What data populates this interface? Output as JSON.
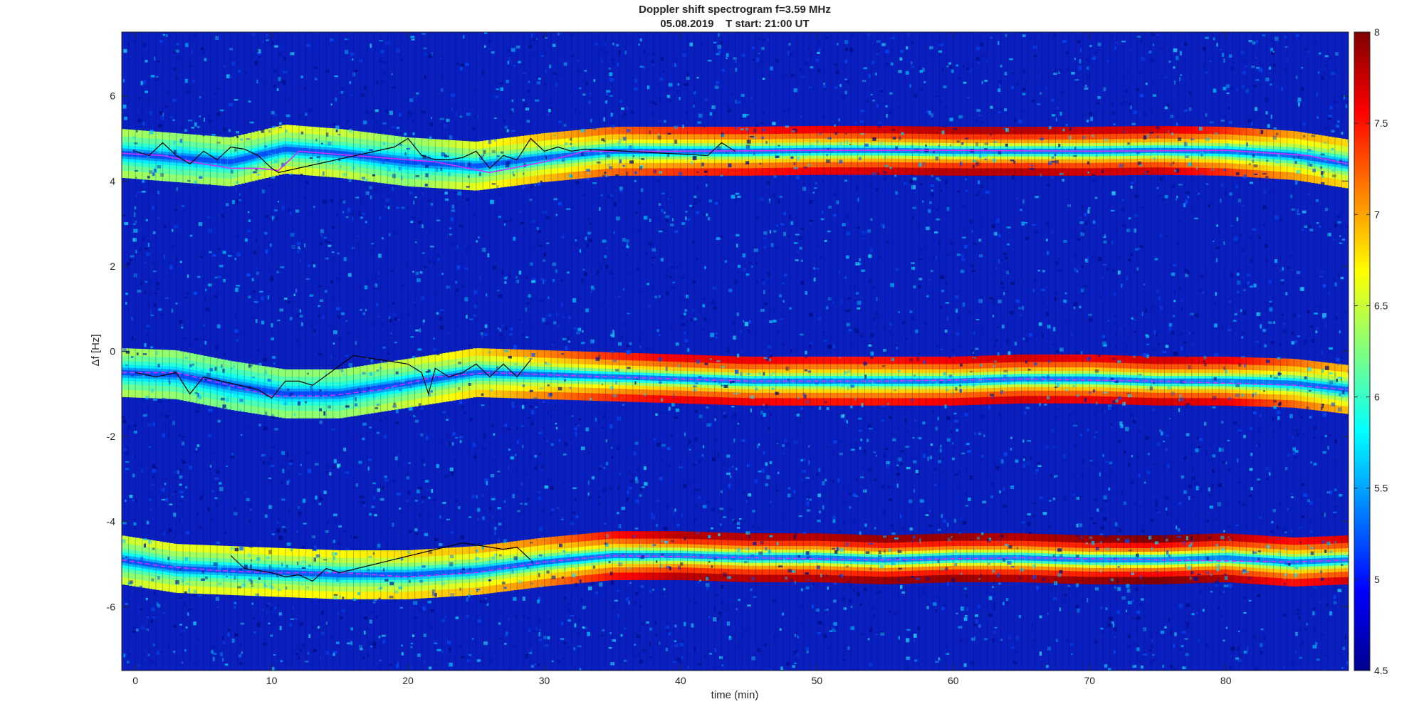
{
  "chart_data": {
    "type": "heatmap",
    "title": "Doppler shift spectrogram f=3.59 MHz",
    "subtitle": "05.08.2019    T start: 21:00 UT",
    "xlabel": "time (min)",
    "ylabel": "Δf [Hz]",
    "xlim": [
      -1,
      89
    ],
    "ylim": [
      -7.5,
      7.5
    ],
    "xticks": [
      0,
      10,
      20,
      30,
      40,
      50,
      60,
      70,
      80
    ],
    "yticks": [
      -6,
      -4,
      -2,
      0,
      2,
      4,
      6
    ],
    "colormap": "jet",
    "clim": [
      4.5,
      8
    ],
    "colorbar_ticks": [
      4.5,
      5,
      5.5,
      6,
      6.5,
      7,
      7.5,
      8
    ],
    "colorbar_tick_labels": [
      "4.5",
      "5",
      "5.5",
      "6",
      "6.5",
      "7",
      "7.5",
      "8"
    ],
    "background_level": 5.0,
    "bands": [
      {
        "name": "upper band",
        "t": [
          -1,
          3,
          7,
          11,
          15,
          20,
          25,
          30,
          35,
          40,
          45,
          50,
          55,
          60,
          65,
          70,
          75,
          80,
          85,
          89
        ],
        "df": [
          4.65,
          4.55,
          4.45,
          4.75,
          4.65,
          4.45,
          4.35,
          4.55,
          4.7,
          4.7,
          4.7,
          4.72,
          4.72,
          4.7,
          4.7,
          4.7,
          4.72,
          4.7,
          4.6,
          4.4
        ],
        "peak_level": [
          6.4,
          6.3,
          6.4,
          6.6,
          6.5,
          6.3,
          6.6,
          6.9,
          7.2,
          7.4,
          7.5,
          7.6,
          7.7,
          7.8,
          7.8,
          7.7,
          7.7,
          7.4,
          7.0,
          6.8
        ]
      },
      {
        "name": "middle band",
        "t": [
          -1,
          3,
          7,
          11,
          15,
          20,
          25,
          30,
          35,
          40,
          45,
          50,
          55,
          60,
          65,
          70,
          75,
          80,
          85,
          89
        ],
        "df": [
          -0.5,
          -0.55,
          -0.8,
          -1.0,
          -1.0,
          -0.75,
          -0.5,
          -0.55,
          -0.6,
          -0.65,
          -0.7,
          -0.7,
          -0.7,
          -0.7,
          -0.65,
          -0.65,
          -0.7,
          -0.7,
          -0.75,
          -0.9
        ],
        "peak_level": [
          6.4,
          6.3,
          6.2,
          6.3,
          6.3,
          6.5,
          6.8,
          7.1,
          7.4,
          7.6,
          7.6,
          7.5,
          7.5,
          7.6,
          7.7,
          7.6,
          7.7,
          7.6,
          7.2,
          6.9
        ]
      },
      {
        "name": "lower band",
        "t": [
          -1,
          3,
          7,
          11,
          15,
          20,
          25,
          30,
          35,
          40,
          45,
          50,
          55,
          60,
          65,
          70,
          75,
          80,
          85,
          89
        ],
        "df": [
          -4.9,
          -5.1,
          -5.15,
          -5.2,
          -5.25,
          -5.25,
          -5.15,
          -4.95,
          -4.8,
          -4.8,
          -4.85,
          -4.85,
          -4.9,
          -4.85,
          -4.85,
          -4.9,
          -4.9,
          -4.85,
          -4.95,
          -4.9
        ],
        "peak_level": [
          6.5,
          6.6,
          6.6,
          6.7,
          6.7,
          6.8,
          6.9,
          7.1,
          7.5,
          7.8,
          7.8,
          7.8,
          7.9,
          7.9,
          7.8,
          7.9,
          8.0,
          7.8,
          7.5,
          7.7
        ]
      }
    ],
    "overlay_tracks": [
      {
        "color": "#cc33ff",
        "t": [
          -1,
          2,
          5,
          7,
          9,
          10.5,
          12,
          16,
          22,
          26,
          30,
          33,
          40,
          50,
          60,
          70,
          80,
          86,
          89
        ],
        "df": [
          4.65,
          4.6,
          4.4,
          4.3,
          4.3,
          4.25,
          4.7,
          4.6,
          4.45,
          4.2,
          4.45,
          4.7,
          4.7,
          4.72,
          4.72,
          4.7,
          4.72,
          4.6,
          4.4
        ]
      },
      {
        "color": "#cc33ff",
        "t": [
          -1,
          3,
          7,
          10,
          14,
          18,
          22,
          26,
          30,
          35,
          45,
          55,
          65,
          75,
          85,
          89
        ],
        "df": [
          -0.5,
          -0.5,
          -0.8,
          -1.05,
          -1.05,
          -0.9,
          -0.6,
          -0.5,
          -0.55,
          -0.6,
          -0.7,
          -0.7,
          -0.65,
          -0.7,
          -0.8,
          -0.9
        ],
        "dashed": true
      },
      {
        "color": "#cc33ff",
        "t": [
          -1,
          2,
          6,
          10,
          15,
          20,
          25,
          30,
          35,
          45,
          55,
          65,
          75,
          85,
          89
        ],
        "df": [
          -4.9,
          -5.05,
          -5.15,
          -5.2,
          -5.2,
          -5.3,
          -5.2,
          -4.95,
          -4.8,
          -4.85,
          -4.9,
          -4.85,
          -4.9,
          -4.95,
          -4.9
        ],
        "dashed": true
      },
      {
        "color": "#000000",
        "t": [
          0,
          1,
          2,
          3,
          4,
          5,
          6,
          7,
          8,
          9,
          10,
          10.5,
          19,
          20,
          21,
          22,
          23,
          24,
          25,
          26,
          27,
          28,
          29,
          30,
          31,
          32,
          33,
          42,
          43,
          44
        ],
        "df": [
          4.7,
          4.6,
          4.9,
          4.6,
          4.4,
          4.7,
          4.5,
          4.8,
          4.75,
          4.6,
          4.3,
          4.2,
          4.8,
          5.0,
          4.6,
          4.5,
          4.5,
          4.55,
          4.7,
          4.3,
          4.6,
          4.5,
          5.0,
          4.7,
          4.8,
          4.7,
          4.75,
          4.6,
          4.9,
          4.7
        ]
      },
      {
        "color": "#000000",
        "t": [
          0,
          1.5,
          3,
          4,
          5,
          9,
          10,
          11,
          12,
          13,
          16,
          18,
          20,
          21,
          21.5,
          22,
          23,
          24,
          25,
          26,
          27,
          28,
          29
        ],
        "df": [
          -0.5,
          -0.6,
          -0.5,
          -1.0,
          -0.6,
          -0.9,
          -1.1,
          -0.7,
          -0.7,
          -0.8,
          -0.1,
          -0.2,
          -0.3,
          -0.5,
          -1.0,
          -0.4,
          -0.6,
          -0.5,
          -0.3,
          -0.6,
          -0.3,
          -0.6,
          -0.2
        ]
      },
      {
        "color": "#000000",
        "t": [
          7,
          8,
          10,
          11,
          12,
          13,
          14,
          15,
          24,
          25,
          26,
          27,
          28,
          29
        ],
        "df": [
          -4.8,
          -5.1,
          -5.2,
          -5.3,
          -5.25,
          -5.4,
          -5.1,
          -5.2,
          -4.5,
          -4.55,
          -4.6,
          -4.65,
          -4.6,
          -4.9
        ]
      }
    ]
  }
}
